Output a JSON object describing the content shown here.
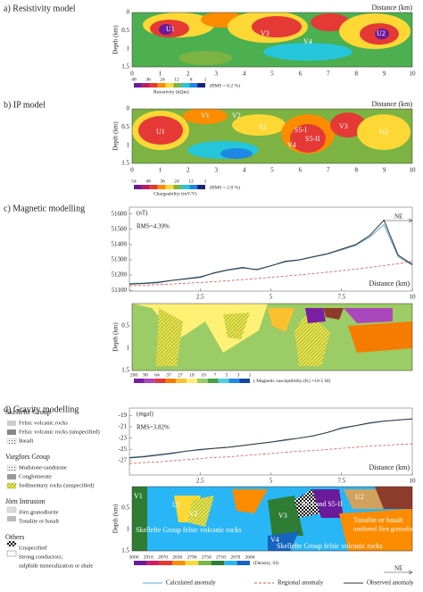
{
  "panel_a": {
    "title": "a) Resistivity model",
    "distance_label": "Distance (km)",
    "depth_label": "Depth (km)",
    "depth_ticks": [
      "0",
      "0.5",
      "1",
      "1.5"
    ],
    "distance_ticks": [
      "0",
      "1",
      "2",
      "3",
      "4",
      "5",
      "6",
      "7",
      "8",
      "9",
      "10"
    ],
    "units": [
      "U1",
      "V3",
      "V4",
      "U2"
    ],
    "colorbar_ticks": [
      "48",
      "36",
      "24",
      "12",
      "6",
      "1"
    ],
    "colorbar_title": "Resistivity (kΩm)",
    "rms": "(RMS = 6.2 %)",
    "colorbar_colors": [
      "#6a1b9a",
      "#c2185b",
      "#e53935",
      "#fb8c00",
      "#fdd835",
      "#7cb342",
      "#26c6da",
      "#1e88e5",
      "#1a237e"
    ]
  },
  "panel_b": {
    "title": "b) IP model",
    "distance_label": "Distance (km)",
    "depth_label": "Depth (km)",
    "depth_ticks": [
      "0",
      "0.5",
      "1",
      "1.5"
    ],
    "distance_ticks": [
      "0",
      "1",
      "2",
      "3",
      "4",
      "5",
      "6",
      "7",
      "8",
      "9",
      "10"
    ],
    "units": [
      "U1",
      "V1",
      "V2",
      "S2",
      "S5-I",
      "S5-II",
      "V4",
      "V3",
      "U2"
    ],
    "colorbar_ticks": [
      "54",
      "48",
      "36",
      "24",
      "12",
      "1"
    ],
    "colorbar_title": "Chargeability (mV/V)",
    "rms": "(RMS = 2.8 %)",
    "colorbar_colors": [
      "#6a1b9a",
      "#c2185b",
      "#e53935",
      "#fb8c00",
      "#fdd835",
      "#7cb342",
      "#26c6da",
      "#1e88e5",
      "#1a237e"
    ],
    "direction": "NE"
  },
  "magnetic_section": {
    "depth_label": "Depth (km)",
    "depth_ticks": [
      "0.5",
      "1",
      "1.5"
    ],
    "colorbar_ticks": [
      "200",
      "90",
      "64",
      "37",
      "27",
      "18",
      "10",
      "7",
      "5",
      "3",
      "1"
    ],
    "colorbar_title": "( Magnetic susceptibility (K) ×10-5 SI)",
    "colorbar_colors": [
      "#7b1fa2",
      "#ab47bc",
      "#e53935",
      "#f57c00",
      "#fbc02d",
      "#fff176",
      "#9ccc65",
      "#43a047",
      "#4dd0e1",
      "#1e88e5",
      "#0d47a1"
    ]
  },
  "gravity_section": {
    "depth_label": "Depth (km)",
    "depth_ticks": [
      "0.5",
      "1",
      "1.5"
    ],
    "units": [
      "V1",
      "U1",
      "V2",
      "V3",
      "V4",
      "S5-I and S5-II",
      "U2"
    ],
    "notes": [
      "Skellefte Group felsic volcanic rocks",
      "Skellefte Group felsic volcanic rocks",
      "Tonalite or basalt",
      "unaltered Jörn granodiorite ?"
    ],
    "colorbar_ticks": [
      "3000",
      "2910",
      "2870",
      "2830",
      "2790",
      "2750",
      "2710",
      "2670",
      "2600"
    ],
    "colorbar_title": "(Density, SI)",
    "colorbar_colors": [
      "#6a1b9a",
      "#d81b60",
      "#e53935",
      "#fb8c00",
      "#fdd835",
      "#7cb342",
      "#2e7d32",
      "#29b6f6",
      "#1565c0"
    ],
    "direction": "NE"
  },
  "geology_legend": [
    {
      "title": "Skellefte Group",
      "items": [
        "Felsic volcanic rocks",
        "Felsic volcanic rocks (unspecified)",
        "Basalt"
      ]
    },
    {
      "title": "Vargfors Group",
      "items": [
        "Mudstone-sandstone",
        "Conglomerate",
        "Sedimentary rocks (unspecified)"
      ]
    },
    {
      "title": "Jörn Intrusion",
      "items": [
        "Jörn granodiorite",
        "Tonalite or basalt"
      ]
    },
    {
      "title": "Others",
      "items": [
        "Unspecified",
        "Strong conductors;",
        "sulphide mineralization or shale"
      ]
    }
  ],
  "chart_data": [
    {
      "type": "line",
      "title": "c) Magnetic modelling",
      "y_label": "(nT)",
      "x_label": "Distance (km)",
      "annotation": "RMS=4.39%",
      "x": [
        0,
        0.5,
        1,
        1.5,
        2,
        2.5,
        3,
        3.5,
        4,
        4.5,
        5,
        5.5,
        6,
        6.5,
        7,
        7.5,
        8,
        8.5,
        9,
        9.5,
        10
      ],
      "series": [
        {
          "name": "Calculated anomaly",
          "color": "#5aa7d8",
          "style": "solid",
          "values": [
            51145,
            51148,
            51155,
            51165,
            51178,
            51190,
            51212,
            51232,
            51245,
            51238,
            51262,
            51285,
            51298,
            51318,
            51338,
            51365,
            51395,
            51450,
            51530,
            51320,
            51265
          ]
        },
        {
          "name": "Regional anomaly",
          "color": "#d9534f",
          "style": "dashed",
          "values": [
            51130,
            51133,
            51137,
            51141,
            51146,
            51151,
            51157,
            51163,
            51170,
            51177,
            51185,
            51193,
            51201,
            51210,
            51219,
            51229,
            51239,
            51250,
            51262,
            51275,
            51290
          ]
        },
        {
          "name": "Observed anomaly",
          "color": "#333333",
          "style": "solid",
          "values": [
            51140,
            51145,
            51150,
            51165,
            51175,
            51185,
            51215,
            51235,
            51250,
            51235,
            51260,
            51290,
            51300,
            51320,
            51340,
            51370,
            51400,
            51460,
            51560,
            51330,
            51270
          ]
        }
      ],
      "xlim": [
        0,
        10
      ],
      "xticks": [
        2.5,
        5,
        7.5,
        10
      ],
      "ylim": [
        51095,
        51645
      ],
      "yticks": [
        51100,
        51200,
        51300,
        51400,
        51500,
        51600
      ]
    },
    {
      "type": "line",
      "title": "d) Gravity modelling",
      "y_label": "(mgal)",
      "x_label": "Distance (km)",
      "annotation": "RMS=3.82%",
      "x": [
        0,
        0.5,
        1,
        1.5,
        2,
        2.5,
        3,
        3.5,
        4,
        4.5,
        5,
        5.5,
        6,
        6.5,
        7,
        7.5,
        8,
        8.5,
        9,
        9.5,
        10
      ],
      "series": [
        {
          "name": "Calculated anomaly",
          "color": "#5aa7d8",
          "style": "solid",
          "values": [
            -26.4,
            -26.2,
            -25.9,
            -25.6,
            -25.3,
            -25.1,
            -24.8,
            -24.6,
            -24.3,
            -24.0,
            -23.7,
            -23.4,
            -23.0,
            -22.6,
            -22.0,
            -21.3,
            -20.8,
            -20.4,
            -20.0,
            -19.8,
            -19.6
          ]
        },
        {
          "name": "Regional anomaly",
          "color": "#d9534f",
          "style": "dashed",
          "values": [
            -27.5,
            -27.3,
            -27.2,
            -27.0,
            -26.8,
            -26.6,
            -26.4,
            -26.3,
            -26.1,
            -25.9,
            -25.7,
            -25.5,
            -25.3,
            -25.2,
            -25.0,
            -24.8,
            -24.6,
            -24.4,
            -24.3,
            -24.1,
            -24.0
          ]
        },
        {
          "name": "Observed anomaly",
          "color": "#333333",
          "style": "solid",
          "values": [
            -26.5,
            -26.3,
            -26.0,
            -25.7,
            -25.3,
            -25.0,
            -24.8,
            -24.6,
            -24.3,
            -24.0,
            -23.7,
            -23.3,
            -23.0,
            -22.6,
            -22.0,
            -21.2,
            -20.8,
            -20.3,
            -20.0,
            -19.8,
            -19.6
          ]
        }
      ],
      "xlim": [
        0,
        10
      ],
      "xticks": [
        2.5,
        5,
        7.5,
        10
      ],
      "ylim": [
        -29.5,
        -17.7
      ],
      "yticks": [
        -19,
        -21,
        -23,
        -25,
        -27
      ]
    }
  ]
}
